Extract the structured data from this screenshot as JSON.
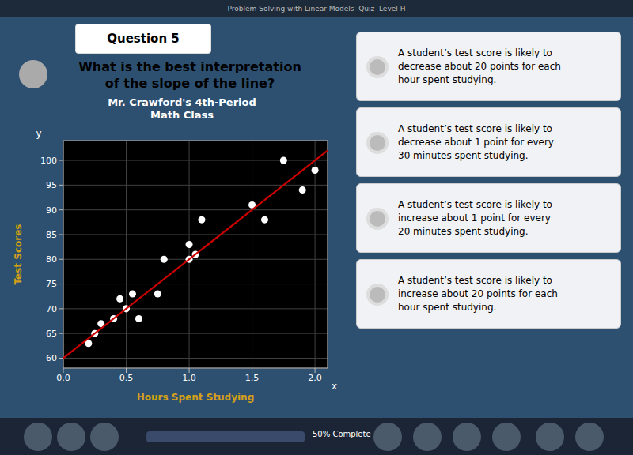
{
  "chart_data": {
    "type": "scatter",
    "title": "Mr. Crawford's 4th-Period\nMath Class",
    "xlabel": "Hours Spent Studying",
    "ylabel": "Test Scores",
    "xlim": [
      0,
      2.1
    ],
    "ylim": [
      58,
      104
    ],
    "xticks": [
      {
        "value": 0,
        "label": "0.0"
      },
      0.5,
      {
        "value": 1,
        "label": "1.0"
      },
      1.5,
      {
        "value": 2,
        "label": "2.0"
      }
    ],
    "yticks": [
      60,
      65,
      70,
      75,
      80,
      85,
      90,
      95,
      100
    ],
    "grid": true,
    "series": [
      {
        "type": "scatter",
        "color": "white",
        "x": [
          0.2,
          0.25,
          0.3,
          0.4,
          0.45,
          0.5,
          0.55,
          0.6,
          0.75,
          0.8,
          1.0,
          1.0,
          1.05,
          1.1,
          1.5,
          1.6,
          1.75,
          1.9,
          2.0
        ],
        "values": [
          63,
          65,
          67,
          68,
          72,
          70,
          73,
          68,
          73,
          80,
          83,
          80,
          81,
          88,
          91,
          88,
          100,
          94,
          98
        ]
      },
      {
        "type": "line",
        "color": "#cc0000",
        "x": [
          0,
          2.1
        ],
        "values": [
          60,
          102
        ]
      }
    ],
    "annotations": [
      "Problem Solving with Linear Models  Quiz  Level H",
      "Question 5",
      "What is the best interpretation\nof the slope of the line?",
      "A student’s test score is likely to\ndecrease about 20 points for each\nhour spent studying.",
      "A student’s test score is likely to\ndecrease about 1 point for every\n30 minutes spent studying.",
      "A student’s test score is likely to\nincrease about 1 point for every\n20 minutes spent studying.",
      "A student’s test score is likely to\nincrease about 20 points for each\nhour spent studying.",
      "50% Complete",
      "y",
      "x"
    ]
  }
}
